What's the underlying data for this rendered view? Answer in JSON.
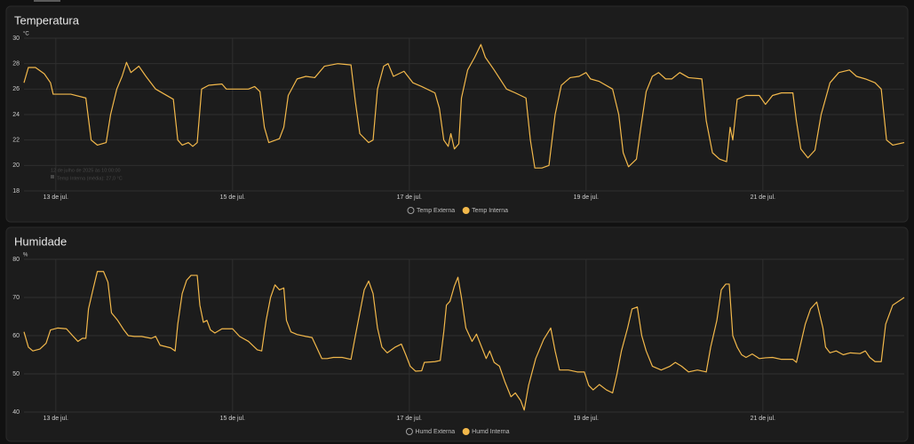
{
  "chart_data": [
    {
      "type": "line",
      "title": "Temperatura",
      "unit": "°C",
      "xlim": [
        12.64,
        22.6
      ],
      "ylim": [
        18,
        30
      ],
      "xticks": [
        {
          "value": 13,
          "label": "13 de jul."
        },
        {
          "value": 15,
          "label": "15 de jul."
        },
        {
          "value": 17,
          "label": "17 de jul."
        },
        {
          "value": 19,
          "label": "19 de jul."
        },
        {
          "value": 21,
          "label": "21 de jul."
        }
      ],
      "yticks": [
        18,
        20,
        22,
        24,
        26,
        28,
        30
      ],
      "grid": true,
      "tooltip": [
        "12 de julho de 2025 às 10:00:00",
        "Temp Interna (média): 27,0 °C"
      ],
      "series": [
        {
          "name": "Temp Externa",
          "color": "#9e9e9e",
          "hidden": true
        },
        {
          "name": "Temp Interna",
          "color": "#f2b84b",
          "x": [
            12.64,
            12.69,
            12.77,
            12.87,
            12.94,
            12.97,
            13.17,
            13.34,
            13.4,
            13.47,
            13.57,
            13.62,
            13.69,
            13.75,
            13.8,
            13.85,
            13.94,
            14.02,
            14.13,
            14.33,
            14.38,
            14.43,
            14.5,
            14.55,
            14.6,
            14.65,
            14.73,
            14.88,
            14.93,
            15.18,
            15.25,
            15.31,
            15.36,
            15.41,
            15.53,
            15.58,
            15.63,
            15.73,
            15.83,
            15.93,
            16.04,
            16.19,
            16.34,
            16.39,
            16.44,
            16.54,
            16.59,
            16.64,
            16.71,
            16.76,
            16.82,
            16.94,
            17.04,
            17.14,
            17.29,
            17.34,
            17.39,
            17.44,
            17.47,
            17.51,
            17.56,
            17.59,
            17.66,
            17.74,
            17.81,
            17.86,
            17.96,
            18.1,
            18.2,
            18.32,
            18.37,
            18.42,
            18.5,
            18.58,
            18.65,
            18.72,
            18.82,
            18.92,
            19.0,
            19.05,
            19.15,
            19.3,
            19.37,
            19.42,
            19.48,
            19.57,
            19.62,
            19.68,
            19.75,
            19.82,
            19.9,
            19.97,
            20.06,
            20.16,
            20.31,
            20.36,
            20.43,
            20.51,
            20.59,
            20.63,
            20.66,
            20.71,
            20.81,
            20.96,
            21.03,
            21.11,
            21.21,
            21.34,
            21.38,
            21.43,
            21.51,
            21.59,
            21.66,
            21.76,
            21.86,
            21.98,
            22.06,
            22.16,
            22.27,
            22.34,
            22.4,
            22.47,
            22.6
          ],
          "values": [
            26.5,
            27.7,
            27.7,
            27.2,
            26.5,
            25.6,
            25.6,
            25.3,
            22,
            21.6,
            21.8,
            24,
            26,
            27,
            28.1,
            27.3,
            27.8,
            27,
            26,
            25.2,
            22,
            21.6,
            21.8,
            21.5,
            21.8,
            26,
            26.3,
            26.4,
            26,
            26,
            26.2,
            25.8,
            23,
            21.8,
            22.1,
            23,
            25.5,
            26.8,
            27,
            26.9,
            27.8,
            28,
            27.9,
            25,
            22.5,
            21.8,
            22,
            26,
            27.8,
            28,
            27,
            27.4,
            26.5,
            26.2,
            25.7,
            24.5,
            22,
            21.5,
            22.5,
            21.3,
            21.7,
            25.3,
            27.5,
            28.5,
            29.5,
            28.5,
            27.5,
            26,
            25.7,
            25.3,
            22,
            19.8,
            19.8,
            20,
            24,
            26.3,
            26.9,
            27,
            27.3,
            26.8,
            26.6,
            26,
            24,
            21,
            19.9,
            20.5,
            23,
            25.8,
            27,
            27.3,
            26.8,
            26.8,
            27.3,
            26.9,
            26.8,
            23.5,
            21,
            20.5,
            20.3,
            23,
            22,
            25.2,
            25.5,
            25.5,
            24.8,
            25.5,
            25.7,
            25.7,
            23.5,
            21.3,
            20.6,
            21.2,
            24,
            26.5,
            27.3,
            27.5,
            27,
            26.8,
            26.5,
            26,
            22,
            21.6,
            21.8
          ]
        }
      ]
    },
    {
      "type": "line",
      "title": "Humidade",
      "unit": "%",
      "xlim": [
        12.64,
        22.6
      ],
      "ylim": [
        40,
        80
      ],
      "xticks": [
        {
          "value": 13,
          "label": "13 de jul."
        },
        {
          "value": 15,
          "label": "15 de jul."
        },
        {
          "value": 17,
          "label": "17 de jul."
        },
        {
          "value": 19,
          "label": "19 de jul."
        },
        {
          "value": 21,
          "label": "21 de jul."
        }
      ],
      "yticks": [
        40,
        50,
        60,
        70,
        80
      ],
      "grid": true,
      "series": [
        {
          "name": "Humd Externa",
          "color": "#9e9e9e",
          "hidden": true
        },
        {
          "name": "Humd Interna",
          "color": "#f2b84b",
          "x": [
            12.64,
            12.69,
            12.74,
            12.82,
            12.89,
            12.94,
            13.02,
            13.12,
            13.19,
            13.25,
            13.3,
            13.34,
            13.37,
            13.42,
            13.47,
            13.54,
            13.59,
            13.63,
            13.7,
            13.77,
            13.82,
            13.89,
            13.97,
            14.08,
            14.13,
            14.18,
            14.3,
            14.35,
            14.38,
            14.43,
            14.48,
            14.53,
            14.6,
            14.63,
            14.67,
            14.71,
            14.75,
            14.8,
            14.88,
            15.0,
            15.08,
            15.18,
            15.28,
            15.33,
            15.38,
            15.43,
            15.48,
            15.53,
            15.58,
            15.61,
            15.66,
            15.73,
            15.83,
            15.9,
            15.95,
            16.01,
            16.07,
            16.14,
            16.24,
            16.34,
            16.39,
            16.44,
            16.49,
            16.54,
            16.59,
            16.64,
            16.69,
            16.75,
            16.84,
            16.91,
            16.96,
            17.01,
            17.07,
            17.14,
            17.17,
            17.29,
            17.35,
            17.39,
            17.42,
            17.46,
            17.51,
            17.55,
            17.59,
            17.64,
            17.71,
            17.76,
            17.81,
            17.87,
            17.91,
            17.96,
            18.02,
            18.08,
            18.15,
            18.2,
            18.26,
            18.3,
            18.35,
            18.43,
            18.52,
            18.6,
            18.65,
            18.7,
            18.8,
            18.9,
            18.98,
            19.03,
            19.08,
            19.15,
            19.23,
            19.3,
            19.35,
            19.4,
            19.47,
            19.52,
            19.58,
            19.63,
            19.68,
            19.75,
            19.85,
            19.95,
            20.01,
            20.08,
            20.16,
            20.26,
            20.36,
            20.41,
            20.48,
            20.53,
            20.58,
            20.62,
            20.66,
            20.71,
            20.76,
            20.81,
            20.88,
            20.96,
            21.03,
            21.11,
            21.21,
            21.34,
            21.38,
            21.43,
            21.48,
            21.54,
            21.61,
            21.68,
            21.71,
            21.76,
            21.83,
            21.91,
            21.99,
            22.1,
            22.16,
            22.21,
            22.27,
            22.34,
            22.39,
            22.47,
            22.6
          ],
          "values": [
            61,
            57,
            56,
            56.5,
            58,
            61.5,
            62,
            61.8,
            60,
            58.5,
            59.3,
            59.3,
            67,
            72,
            76.8,
            76.8,
            74,
            66,
            64,
            61.5,
            60,
            59.8,
            59.8,
            59.3,
            59.8,
            57.5,
            56.8,
            56,
            63,
            71,
            74.5,
            75.8,
            75.8,
            68,
            63.5,
            64,
            61.5,
            60.7,
            61.8,
            61.8,
            59.8,
            58.5,
            56.3,
            56,
            64,
            70,
            73.3,
            72,
            72.5,
            64,
            61,
            60.3,
            59.8,
            59.5,
            57,
            54,
            54,
            54.3,
            54.3,
            53.8,
            60,
            66,
            72,
            74.3,
            71,
            62,
            57,
            55.5,
            57,
            57.8,
            55,
            52,
            50.7,
            50.8,
            53,
            53.2,
            53.5,
            61,
            68,
            69,
            73,
            75.3,
            70,
            62,
            58.5,
            60.4,
            57.5,
            54,
            56,
            53,
            52,
            48,
            44,
            45,
            43,
            40.5,
            47,
            54,
            59,
            62,
            56,
            51,
            51,
            50.5,
            50.5,
            47,
            45.8,
            47.2,
            45.8,
            45,
            50,
            56,
            62,
            67,
            67.5,
            60,
            56,
            52,
            51,
            52,
            53,
            52,
            50.5,
            51,
            50.5,
            57,
            64,
            72,
            73.5,
            73.5,
            60,
            57,
            55,
            54.3,
            55.2,
            54,
            54.2,
            54.3,
            53.8,
            53.8,
            53,
            58,
            63,
            67,
            68.8,
            62,
            57,
            55.5,
            56,
            55,
            55.5,
            55.3,
            56,
            54.3,
            53.2,
            53.2,
            63,
            68,
            70
          ]
        }
      ]
    }
  ]
}
